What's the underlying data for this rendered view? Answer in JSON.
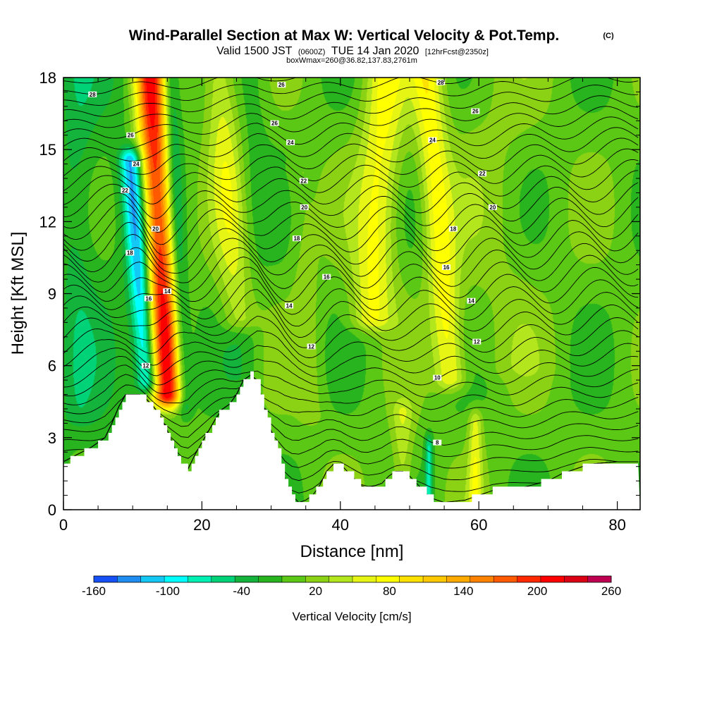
{
  "header": {
    "title": "Wind-Parallel Section at Max W: Vertical Velocity & Pot.Temp.",
    "title_mark": "(C)",
    "sub_1": "Valid 1500 JST",
    "sub_2": "(0600Z)",
    "sub_3": "TUE 14 Jan 2020",
    "sub_4": "[12hrFcst@2350z]",
    "note": "boxWmax=260@36.82,137.83,2761m"
  },
  "chart_data": {
    "type": "heatmap",
    "xlabel": "Distance [nm]",
    "ylabel": "Height [Kft MSL]",
    "xlim": [
      0,
      83.3
    ],
    "ylim": [
      0,
      18
    ],
    "xticks": [
      "0",
      "20",
      "40",
      "60",
      "80"
    ],
    "yticks": [
      "0",
      "3",
      "6",
      "9",
      "12",
      "15",
      "18"
    ],
    "colorbar": {
      "label": "Vertical Velocity [cm/s]",
      "min": -160,
      "step": 20,
      "tick_labels": [
        "-160",
        "-100",
        "-40",
        "20",
        "80",
        "140",
        "200",
        "260"
      ],
      "colors": [
        "#0000ff",
        "#1450f5",
        "#1e8cf0",
        "#14c8f5",
        "#00ffff",
        "#00f0b4",
        "#00d278",
        "#14b43c",
        "#28b41e",
        "#5ac814",
        "#8cd214",
        "#b4e61e",
        "#e6f514",
        "#ffff00",
        "#ffe100",
        "#ffc800",
        "#ffaa00",
        "#ff8200",
        "#ff5a00",
        "#ff2800",
        "#ff0000",
        "#dc0014",
        "#be0050",
        "#a00078",
        "#7d008c",
        "#5a0096"
      ]
    },
    "terrain_kft": [
      [
        0,
        2.0
      ],
      [
        2,
        2.3
      ],
      [
        4,
        2.6
      ],
      [
        6,
        3.0
      ],
      [
        7,
        3.6
      ],
      [
        8,
        4.3
      ],
      [
        9,
        4.8
      ],
      [
        11,
        4.8
      ],
      [
        12,
        4.6
      ],
      [
        13,
        4.3
      ],
      [
        14,
        3.9
      ],
      [
        15,
        3.3
      ],
      [
        16,
        2.6
      ],
      [
        17,
        1.9
      ],
      [
        18,
        1.7
      ],
      [
        19,
        2.3
      ],
      [
        20,
        2.8
      ],
      [
        21,
        3.3
      ],
      [
        22,
        3.8
      ],
      [
        23,
        4.2
      ],
      [
        24,
        4.4
      ],
      [
        25,
        4.8
      ],
      [
        26,
        5.4
      ],
      [
        27,
        5.6
      ],
      [
        28,
        5.4
      ],
      [
        29,
        4.2
      ],
      [
        30,
        3.3
      ],
      [
        31,
        2.4
      ],
      [
        32,
        1.3
      ],
      [
        33,
        0.6
      ],
      [
        34,
        0.3
      ],
      [
        35,
        0.4
      ],
      [
        36,
        0.6
      ],
      [
        37,
        1.0
      ],
      [
        38,
        1.6
      ],
      [
        39,
        1.9
      ],
      [
        40,
        1.9
      ],
      [
        41,
        1.6
      ],
      [
        42,
        1.3
      ],
      [
        43,
        1.0
      ],
      [
        44,
        0.9
      ],
      [
        46,
        1.1
      ],
      [
        47,
        1.4
      ],
      [
        48,
        1.6
      ],
      [
        49,
        1.6
      ],
      [
        50,
        1.4
      ],
      [
        51,
        1.1
      ],
      [
        52,
        0.8
      ],
      [
        53,
        0.5
      ],
      [
        54,
        0.4
      ],
      [
        55,
        0.3
      ],
      [
        58,
        0.4
      ],
      [
        60,
        0.6
      ],
      [
        62,
        0.8
      ],
      [
        66,
        0.9
      ],
      [
        70,
        1.2
      ],
      [
        72,
        1.5
      ],
      [
        74,
        1.7
      ],
      [
        76,
        1.9
      ],
      [
        80,
        2.0
      ],
      [
        83.3,
        2.0
      ]
    ],
    "velocity_features": [
      {
        "x": 14.0,
        "y": 10,
        "half_width_nm": 2.2,
        "peak_cms": 220,
        "ybot": 4.8,
        "ytop": 18,
        "x_top": 12.5,
        "x_bottom": 15.0
      },
      {
        "x": 10.8,
        "y": 10,
        "half_width_nm": 1.6,
        "peak_cms": -130,
        "ybot": 5.4,
        "ytop": 14.5,
        "x_top": 9.8,
        "x_bottom": 12.2
      },
      {
        "x": 16.5,
        "y": 11,
        "half_width_nm": 1.1,
        "peak_cms": -60,
        "ybot": 4.5,
        "ytop": 18,
        "x_top": 15.5,
        "x_bottom": 17.5
      },
      {
        "x": 23.5,
        "y": 15,
        "half_width_nm": 2.5,
        "peak_cms": 60,
        "ybot": 8,
        "ytop": 18,
        "x_top": 22.5,
        "x_bottom": 25.5
      },
      {
        "x": 45.5,
        "y": 14,
        "half_width_nm": 3.0,
        "peak_cms": 75,
        "ybot": 8,
        "ytop": 18,
        "x_top": 46.5,
        "x_bottom": 44.5
      },
      {
        "x": 54.5,
        "y": 10,
        "half_width_nm": 2.2,
        "peak_cms": 80,
        "ybot": 5.5,
        "ytop": 18,
        "x_top": 52.5,
        "x_bottom": 56.0
      },
      {
        "x": 49.0,
        "y": 3,
        "half_width_nm": 1.5,
        "peak_cms": 45,
        "ybot": 1.6,
        "ytop": 4.0,
        "x_top": 49.0,
        "x_bottom": 49.0
      },
      {
        "x": 59.5,
        "y": 2,
        "half_width_nm": 1.0,
        "peak_cms": 60,
        "ybot": 0.6,
        "ytop": 3.6,
        "x_top": 59.5,
        "x_bottom": 59.5
      },
      {
        "x": 35.0,
        "y": 9,
        "half_width_nm": 2.0,
        "peak_cms": 20,
        "ybot": 4,
        "ytop": 14,
        "x_top": 34.0,
        "x_bottom": 36.0
      },
      {
        "x": 52.8,
        "y": 2,
        "half_width_nm": 0.6,
        "peak_cms": -70,
        "ybot": 0.4,
        "ytop": 2.6,
        "x_top": 52.8,
        "x_bottom": 52.8
      },
      {
        "x": 26.5,
        "y": 10,
        "half_width_nm": 2.5,
        "peak_cms": -20,
        "ybot": 5.6,
        "ytop": 18,
        "x_top": 27.5,
        "x_bottom": 26.0
      },
      {
        "x": 63.0,
        "y": 14,
        "half_width_nm": 6.0,
        "peak_cms": 15,
        "ybot": 6,
        "ytop": 18,
        "x_top": 62.0,
        "x_bottom": 64.0
      },
      {
        "x": 2.0,
        "y": 14,
        "half_width_nm": 2.5,
        "peak_cms": -25,
        "ybot": 4,
        "ytop": 18,
        "x_top": 2.0,
        "x_bottom": 2.0
      }
    ],
    "theta_contour_labels": [
      {
        "text": "28",
        "x": 4.2,
        "y": 17.3
      },
      {
        "text": "26",
        "x": 31.5,
        "y": 17.7
      },
      {
        "text": "28",
        "x": 54.5,
        "y": 17.8
      },
      {
        "text": "26",
        "x": 9.7,
        "y": 15.6
      },
      {
        "text": "26",
        "x": 30.5,
        "y": 16.1
      },
      {
        "text": "26",
        "x": 59.5,
        "y": 16.6
      },
      {
        "text": "24",
        "x": 10.5,
        "y": 14.4
      },
      {
        "text": "24",
        "x": 32.8,
        "y": 15.3
      },
      {
        "text": "24",
        "x": 53.3,
        "y": 15.4
      },
      {
        "text": "22",
        "x": 8.9,
        "y": 13.3
      },
      {
        "text": "22",
        "x": 34.7,
        "y": 13.7
      },
      {
        "text": "22",
        "x": 60.5,
        "y": 14.0
      },
      {
        "text": "20",
        "x": 13.3,
        "y": 11.7
      },
      {
        "text": "20",
        "x": 34.8,
        "y": 12.6
      },
      {
        "text": "20",
        "x": 62.0,
        "y": 12.6
      },
      {
        "text": "18",
        "x": 9.6,
        "y": 10.7
      },
      {
        "text": "18",
        "x": 33.7,
        "y": 11.3
      },
      {
        "text": "18",
        "x": 56.3,
        "y": 11.7
      },
      {
        "text": "16",
        "x": 12.3,
        "y": 8.8
      },
      {
        "text": "16",
        "x": 38.0,
        "y": 9.7
      },
      {
        "text": "16",
        "x": 55.3,
        "y": 10.1
      },
      {
        "text": "14",
        "x": 15.0,
        "y": 9.1
      },
      {
        "text": "14",
        "x": 32.6,
        "y": 8.5
      },
      {
        "text": "14",
        "x": 58.9,
        "y": 8.7
      },
      {
        "text": "12",
        "x": 11.9,
        "y": 6.0
      },
      {
        "text": "12",
        "x": 35.8,
        "y": 6.8
      },
      {
        "text": "12",
        "x": 59.7,
        "y": 7.0
      },
      {
        "text": "10",
        "x": 54.0,
        "y": 5.5
      },
      {
        "text": "8",
        "x": 54.0,
        "y": 2.8
      }
    ]
  }
}
